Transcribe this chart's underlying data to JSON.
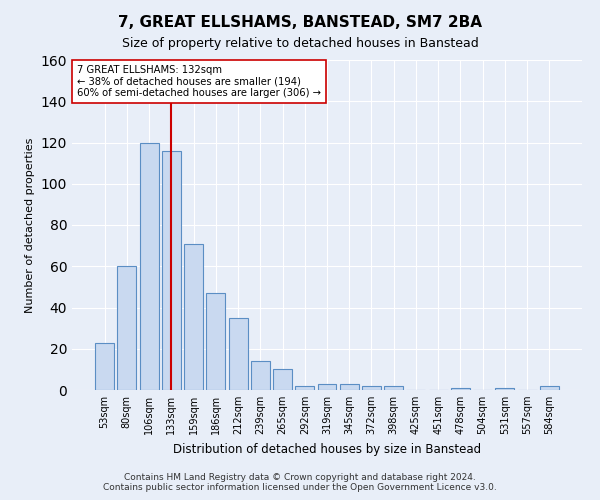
{
  "title": "7, GREAT ELLSHAMS, BANSTEAD, SM7 2BA",
  "subtitle": "Size of property relative to detached houses in Banstead",
  "xlabel": "Distribution of detached houses by size in Banstead",
  "ylabel": "Number of detached properties",
  "bin_labels": [
    "53sqm",
    "80sqm",
    "106sqm",
    "133sqm",
    "159sqm",
    "186sqm",
    "212sqm",
    "239sqm",
    "265sqm",
    "292sqm",
    "319sqm",
    "345sqm",
    "372sqm",
    "398sqm",
    "425sqm",
    "451sqm",
    "478sqm",
    "504sqm",
    "531sqm",
    "557sqm",
    "584sqm"
  ],
  "bar_heights": [
    23,
    60,
    120,
    116,
    71,
    47,
    35,
    14,
    10,
    2,
    3,
    3,
    2,
    2,
    0,
    0,
    1,
    0,
    1,
    0,
    2
  ],
  "bar_color": "#c9d9f0",
  "bar_edge_color": "#5b8ec4",
  "ylim": [
    0,
    160
  ],
  "yticks": [
    0,
    20,
    40,
    60,
    80,
    100,
    120,
    140,
    160
  ],
  "property_bin_index": 3,
  "red_line_color": "#cc0000",
  "annotation_text": "7 GREAT ELLSHAMS: 132sqm\n← 38% of detached houses are smaller (194)\n60% of semi-detached houses are larger (306) →",
  "annotation_box_color": "#ffffff",
  "annotation_box_edge": "#cc0000",
  "footer_line1": "Contains HM Land Registry data © Crown copyright and database right 2024.",
  "footer_line2": "Contains public sector information licensed under the Open Government Licence v3.0.",
  "background_color": "#e8eef8",
  "grid_color": "#ffffff"
}
